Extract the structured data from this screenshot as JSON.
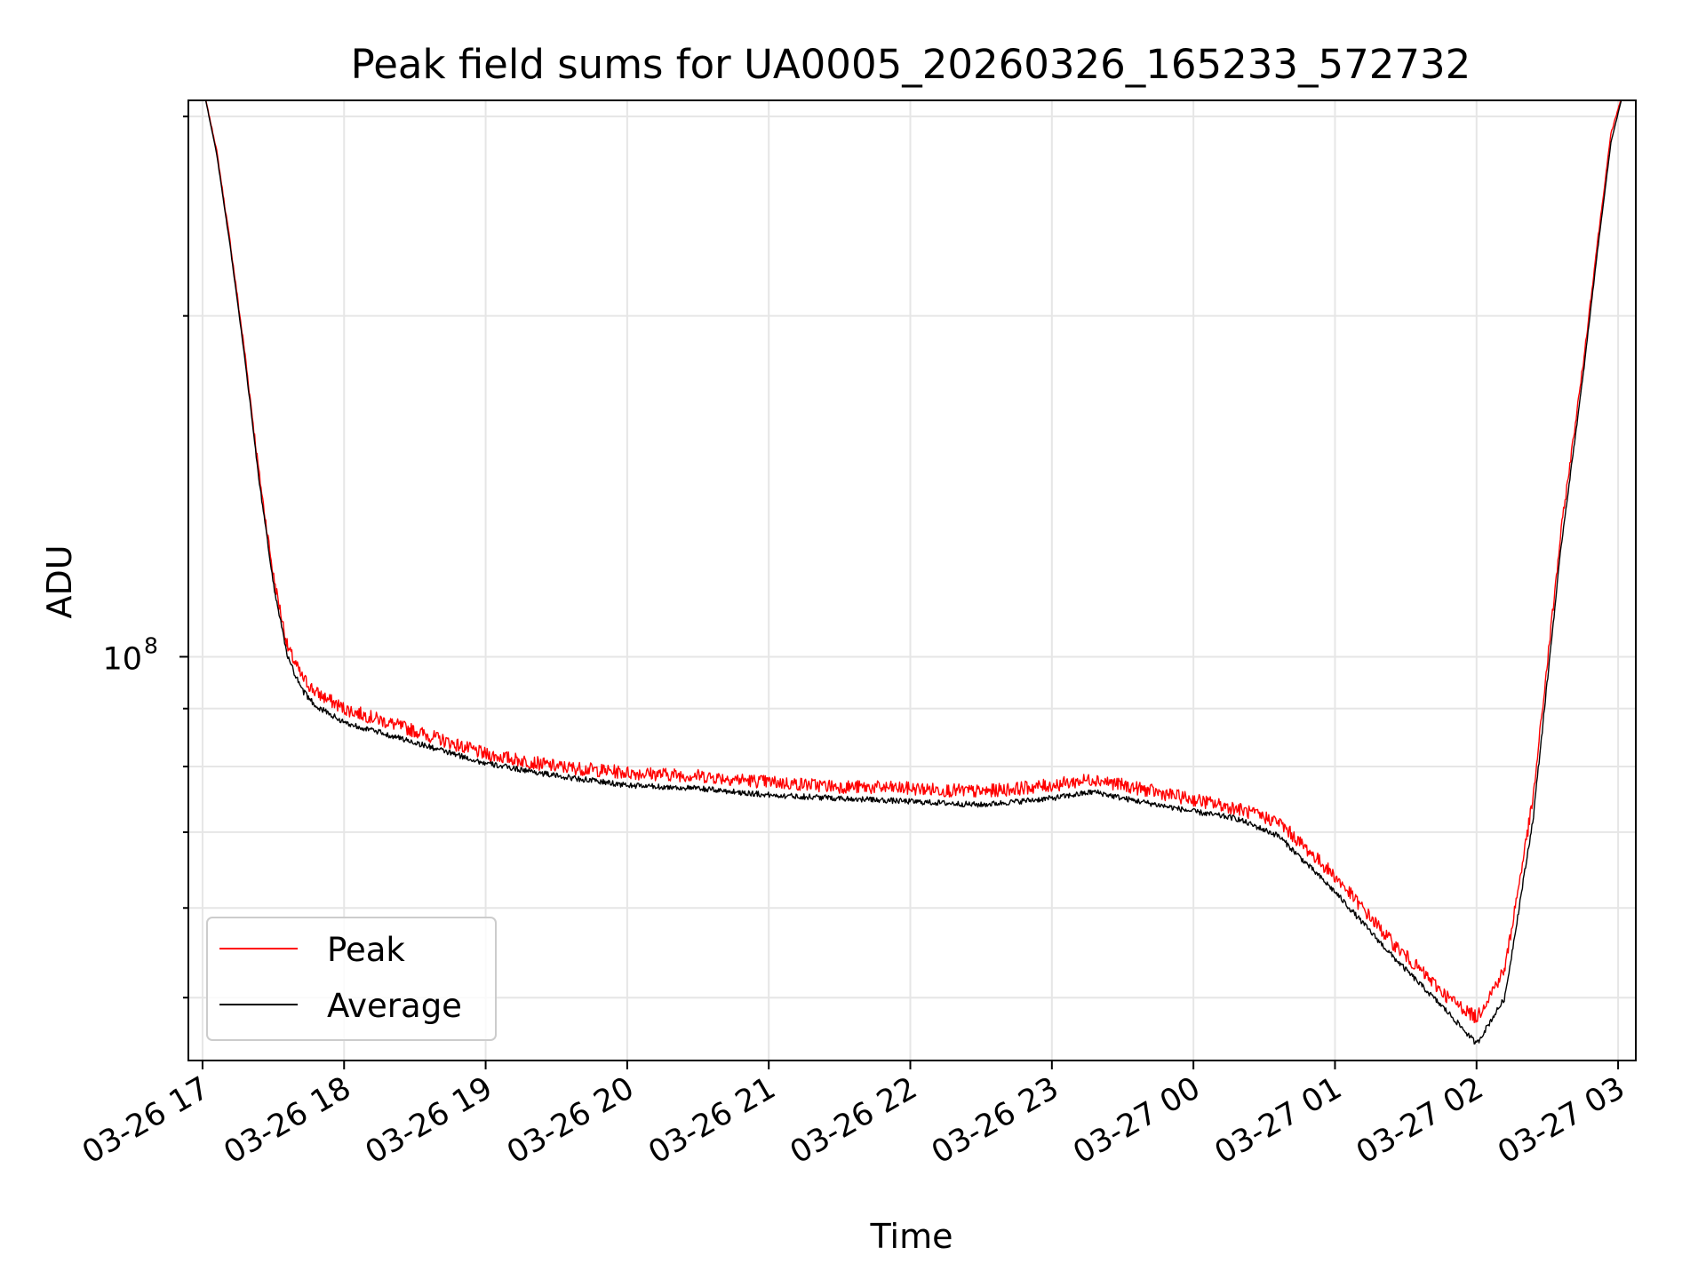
{
  "chart_data": {
    "type": "line",
    "title": "Peak field sums for UA0005_20260326_165233_572732",
    "xlabel": "Time",
    "ylabel": "ADU",
    "yscale": "log",
    "ylim": [
      44000000,
      310000000
    ],
    "xlim_hours": [
      -0.1,
      10.125
    ],
    "grid": true,
    "legend": {
      "position": "lower-left",
      "entries": [
        "Peak",
        "Average"
      ]
    },
    "x_ticks": [
      {
        "hours": 0,
        "label": "03-26 17"
      },
      {
        "hours": 1,
        "label": "03-26 18"
      },
      {
        "hours": 2,
        "label": "03-26 19"
      },
      {
        "hours": 3,
        "label": "03-26 20"
      },
      {
        "hours": 4,
        "label": "03-26 21"
      },
      {
        "hours": 5,
        "label": "03-26 22"
      },
      {
        "hours": 6,
        "label": "03-26 23"
      },
      {
        "hours": 7,
        "label": "03-27 00"
      },
      {
        "hours": 8,
        "label": "03-27 01"
      },
      {
        "hours": 9,
        "label": "03-27 02"
      },
      {
        "hours": 10,
        "label": "03-27 03"
      }
    ],
    "y_major_ticks": [
      {
        "value": 100000000,
        "base": "10",
        "exp": "8"
      }
    ],
    "y_minor_ticks": [
      50000000,
      60000000,
      70000000,
      80000000,
      90000000,
      200000000,
      300000000
    ],
    "series": [
      {
        "name": "Peak",
        "color": "#ff0000",
        "x_hours": [
          0.0,
          0.1,
          0.2,
          0.3,
          0.4,
          0.5,
          0.6,
          0.7,
          0.8,
          1.0,
          1.5,
          2.0,
          2.5,
          3.0,
          3.5,
          4.0,
          4.5,
          5.0,
          5.5,
          6.0,
          6.3,
          6.5,
          7.0,
          7.3,
          7.6,
          8.0,
          8.4,
          8.8,
          9.0,
          9.2,
          9.4,
          9.6,
          9.75,
          9.85,
          9.95,
          10.05
        ],
        "values": [
          320000000,
          280000000,
          230000000,
          185000000,
          145000000,
          118000000,
          102000000,
          96000000,
          93000000,
          90000000,
          86000000,
          82000000,
          80000000,
          79000000,
          78500000,
          77500000,
          76800000,
          76500000,
          76000000,
          77000000,
          78000000,
          77000000,
          74800000,
          73500000,
          71500000,
          64000000,
          56000000,
          50000000,
          48000000,
          53000000,
          75000000,
          130000000,
          180000000,
          230000000,
          290000000,
          320000000
        ]
      },
      {
        "name": "Average",
        "color": "#000000",
        "x_hours": [
          0.0,
          0.1,
          0.2,
          0.3,
          0.4,
          0.5,
          0.6,
          0.7,
          0.8,
          1.0,
          1.5,
          2.0,
          2.5,
          3.0,
          3.5,
          4.0,
          4.5,
          5.0,
          5.5,
          6.0,
          6.3,
          6.5,
          7.0,
          7.3,
          7.6,
          8.0,
          8.4,
          8.8,
          9.0,
          9.2,
          9.4,
          9.6,
          9.75,
          9.85,
          9.95,
          10.05
        ],
        "values": [
          320000000,
          278000000,
          228000000,
          183000000,
          143000000,
          116000000,
          100000000,
          93500000,
          90500000,
          87500000,
          84000000,
          80500000,
          78500000,
          77000000,
          76500000,
          75500000,
          75000000,
          74500000,
          74000000,
          75000000,
          76000000,
          75000000,
          73000000,
          72000000,
          69500000,
          62000000,
          54500000,
          48500000,
          45500000,
          50000000,
          72000000,
          126000000,
          176000000,
          226000000,
          285000000,
          320000000
        ]
      }
    ]
  }
}
